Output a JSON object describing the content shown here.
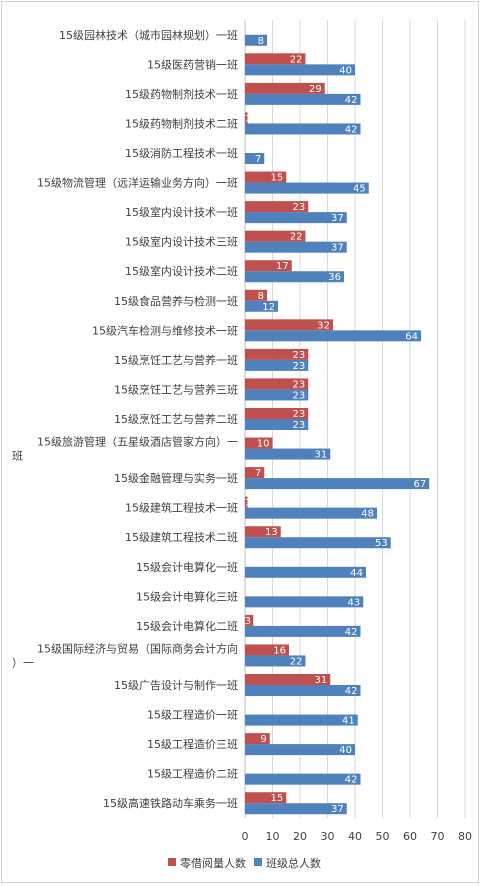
{
  "chart_data": {
    "type": "bar",
    "orientation": "horizontal",
    "categories": [
      "15级园林技术（城市园林规划）一班",
      "15级医药营销一班",
      "15级药物制剂技术一班",
      "15级药物制剂技术二班",
      "15级消防工程技术一班",
      "15级物流管理（远洋运输业务方向）一班",
      "15级室内设计技术一班",
      "15级室内设计技术三班",
      "15级室内设计技术二班",
      "15级食品营养与检测一班",
      "15级汽车检测与维修技术一班",
      "15级烹饪工艺与营养一班",
      "15级烹饪工艺与营养三班",
      "15级烹饪工艺与营养二班",
      "15级旅游管理（五星级酒店管家方向）一班",
      "15级金融管理与实务一班",
      "15级建筑工程技术一班",
      "15级建筑工程技术二班",
      "15级会计电算化一班",
      "15级会计电算化三班",
      "15级会计电算化二班",
      "15级国际经济与贸易（国际商务会计方向）一",
      "15级广告设计与制作一班",
      "15级工程造价一班",
      "15级工程造价三班",
      "15级工程造价二班",
      "15级高速铁路动车乘务一班"
    ],
    "series": [
      {
        "name": "零借阅量人数",
        "color": "#c0504d",
        "values": [
          null,
          22,
          29,
          1,
          null,
          15,
          23,
          22,
          17,
          8,
          32,
          23,
          23,
          23,
          10,
          7,
          1,
          13,
          null,
          null,
          3,
          16,
          31,
          null,
          9,
          null,
          15
        ]
      },
      {
        "name": "班级总人数",
        "color": "#4f81bd",
        "values": [
          8,
          40,
          42,
          42,
          7,
          45,
          37,
          37,
          36,
          12,
          64,
          23,
          23,
          23,
          31,
          67,
          48,
          53,
          44,
          43,
          42,
          22,
          42,
          41,
          40,
          42,
          37
        ]
      }
    ],
    "xlim": [
      0,
      80
    ],
    "x_ticks": [
      0,
      10,
      20,
      30,
      40,
      50,
      60,
      70,
      80
    ],
    "grid": "vertical",
    "legend_position": "bottom",
    "data_labels": true
  }
}
